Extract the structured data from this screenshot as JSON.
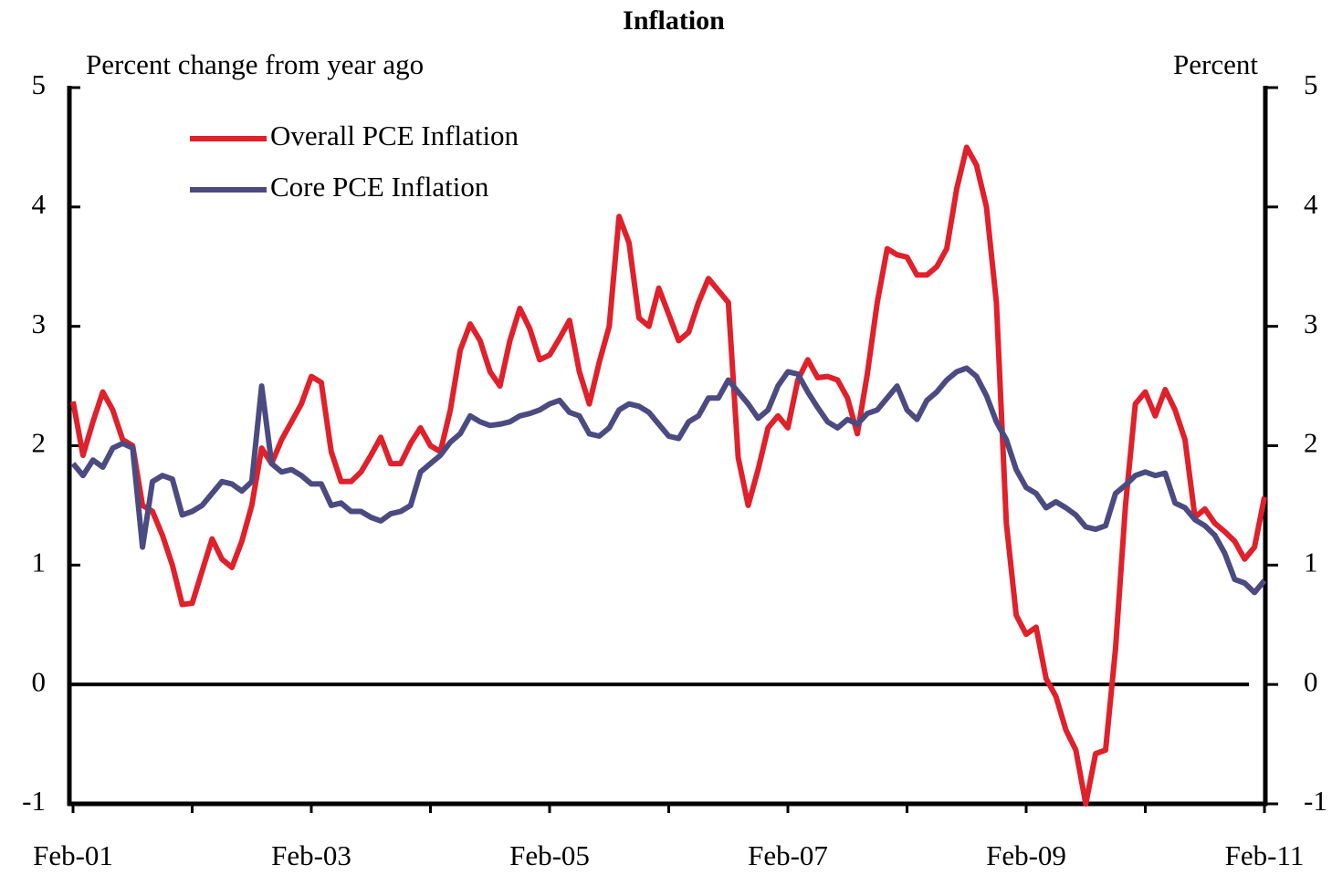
{
  "chart_data": {
    "type": "line",
    "title": "Inflation",
    "y_label": "Percent change from year ago",
    "y2_label": "Percent",
    "categories": [
      "Feb-01",
      null,
      null,
      null,
      null,
      null,
      null,
      null,
      null,
      null,
      null,
      null,
      null,
      null,
      null,
      null,
      null,
      null,
      null,
      null,
      null,
      null,
      null,
      null,
      "Feb-03",
      null,
      null,
      null,
      null,
      null,
      null,
      null,
      null,
      null,
      null,
      null,
      null,
      null,
      null,
      null,
      null,
      null,
      null,
      null,
      null,
      null,
      null,
      null,
      "Feb-05",
      null,
      null,
      null,
      null,
      null,
      null,
      null,
      null,
      null,
      null,
      null,
      null,
      null,
      null,
      null,
      null,
      null,
      null,
      null,
      null,
      null,
      null,
      null,
      "Feb-07",
      null,
      null,
      null,
      null,
      null,
      null,
      null,
      null,
      null,
      null,
      null,
      null,
      null,
      null,
      null,
      null,
      null,
      null,
      null,
      null,
      null,
      null,
      null,
      "Feb-09",
      null,
      null,
      null,
      null,
      null,
      null,
      null,
      null,
      null,
      null,
      null,
      null,
      null,
      null,
      null,
      null,
      null,
      null,
      null,
      null,
      null,
      null,
      null,
      "Feb-11"
    ],
    "series": [
      {
        "name": "Overall PCE Inflation",
        "color": "#e0202a",
        "values": [
          2.37,
          1.92,
          2.2,
          2.45,
          2.3,
          2.05,
          2.0,
          1.5,
          1.45,
          1.25,
          1.0,
          0.67,
          0.68,
          0.95,
          1.22,
          1.05,
          0.98,
          1.2,
          1.5,
          1.98,
          1.85,
          2.05,
          2.2,
          2.35,
          2.58,
          2.53,
          1.95,
          1.7,
          1.7,
          1.78,
          1.92,
          2.07,
          1.85,
          1.85,
          2.02,
          2.15,
          2.0,
          1.95,
          2.3,
          2.8,
          3.02,
          2.88,
          2.62,
          2.5,
          2.88,
          3.15,
          2.98,
          2.72,
          2.76,
          2.9,
          3.05,
          2.62,
          2.35,
          2.7,
          3.0,
          3.92,
          3.7,
          3.07,
          3.0,
          3.32,
          3.1,
          2.88,
          2.95,
          3.2,
          3.4,
          3.3,
          3.2,
          1.9,
          1.5,
          1.8,
          2.15,
          2.25,
          2.15,
          2.55,
          2.72,
          2.57,
          2.58,
          2.55,
          2.4,
          2.1,
          2.6,
          3.2,
          3.65,
          3.6,
          3.58,
          3.43,
          3.43,
          3.5,
          3.65,
          4.15,
          4.5,
          4.35,
          4.0,
          3.2,
          1.35,
          0.58,
          0.42,
          0.48,
          0.05,
          -0.1,
          -0.38,
          -0.55,
          -1.0,
          -0.58,
          -0.55,
          0.3,
          1.5,
          2.35,
          2.45,
          2.25,
          2.47,
          2.3,
          2.05,
          1.4,
          1.47,
          1.35,
          1.28,
          1.2,
          1.05,
          1.15,
          1.57
        ]
      },
      {
        "name": "Core PCE Inflation",
        "color": "#4b4b82",
        "values": [
          1.85,
          1.75,
          1.88,
          1.82,
          1.98,
          2.02,
          1.98,
          1.15,
          1.7,
          1.75,
          1.72,
          1.42,
          1.45,
          1.5,
          1.6,
          1.7,
          1.68,
          1.62,
          1.7,
          2.5,
          1.85,
          1.78,
          1.8,
          1.75,
          1.68,
          1.68,
          1.5,
          1.52,
          1.45,
          1.45,
          1.4,
          1.37,
          1.43,
          1.45,
          1.5,
          1.78,
          1.85,
          1.92,
          2.03,
          2.1,
          2.25,
          2.2,
          2.17,
          2.18,
          2.2,
          2.25,
          2.27,
          2.3,
          2.35,
          2.38,
          2.28,
          2.25,
          2.1,
          2.08,
          2.15,
          2.3,
          2.35,
          2.33,
          2.28,
          2.18,
          2.08,
          2.06,
          2.2,
          2.25,
          2.4,
          2.4,
          2.55,
          2.45,
          2.35,
          2.23,
          2.3,
          2.5,
          2.62,
          2.6,
          2.45,
          2.32,
          2.2,
          2.15,
          2.22,
          2.18,
          2.27,
          2.3,
          2.4,
          2.5,
          2.3,
          2.22,
          2.38,
          2.45,
          2.55,
          2.62,
          2.65,
          2.58,
          2.42,
          2.2,
          2.05,
          1.8,
          1.65,
          1.6,
          1.48,
          1.53,
          1.48,
          1.42,
          1.32,
          1.3,
          1.33,
          1.6,
          1.67,
          1.75,
          1.78,
          1.75,
          1.77,
          1.52,
          1.48,
          1.38,
          1.33,
          1.25,
          1.1,
          0.88,
          0.85,
          0.77,
          0.87
        ]
      }
    ],
    "ylim": [
      -1,
      5
    ],
    "yticks": [
      -1,
      0,
      1,
      2,
      3,
      4,
      5
    ],
    "y2lim": [
      -1,
      5
    ],
    "y2ticks": [
      -1,
      0,
      1,
      2,
      3,
      4,
      5
    ],
    "legend": "upper left"
  }
}
